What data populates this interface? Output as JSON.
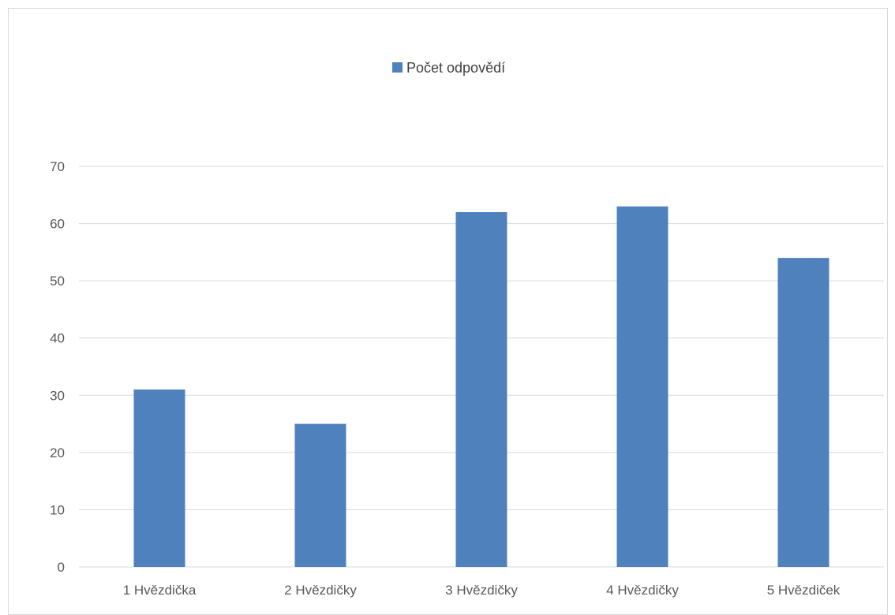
{
  "chart_data": {
    "type": "bar",
    "categories": [
      "1 Hvězdička",
      "2 Hvězdičky",
      "3 Hvězdičky",
      "4 Hvězdičky",
      "5 Hvězdiček"
    ],
    "series": [
      {
        "name": "Počet odpovědí",
        "values": [
          31,
          25,
          62,
          63,
          54
        ],
        "color": "#4f81bd"
      }
    ],
    "ylim": [
      0,
      70
    ],
    "yticks": [
      0,
      10,
      20,
      30,
      40,
      50,
      60,
      70
    ],
    "grid": true,
    "legend_position": "top"
  },
  "colors": {
    "bar": "#4f81bd",
    "grid": "#d9d9d9",
    "tick_text": "#595959"
  }
}
